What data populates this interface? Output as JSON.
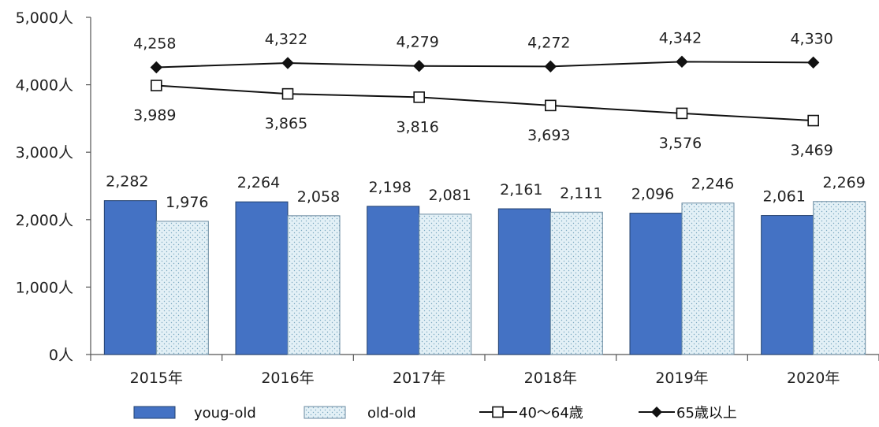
{
  "chart_data": {
    "type": "bar",
    "categories": [
      "2015年",
      "2016年",
      "2017年",
      "2018年",
      "2019年",
      "2020年"
    ],
    "y_ticks": [
      "0人",
      "1,000人",
      "2,000人",
      "3,000人",
      "4,000人",
      "5,000人"
    ],
    "ylim": [
      0,
      5000
    ],
    "grid": false,
    "legend_position": "bottom",
    "bar_series": [
      {
        "name": "youg-old",
        "values": [
          2282,
          2264,
          2198,
          2161,
          2096,
          2061
        ],
        "labels": [
          "2,282",
          "2,264",
          "2,198",
          "2,161",
          "2,096",
          "2,061"
        ],
        "color": "#4472c4"
      },
      {
        "name": "old-old",
        "values": [
          1976,
          2058,
          2081,
          2111,
          2246,
          2269
        ],
        "labels": [
          "1,976",
          "2,058",
          "2,081",
          "2,111",
          "2,246",
          "2,269"
        ],
        "color": "#dfeef5"
      }
    ],
    "line_series": [
      {
        "name": "40～64歳",
        "values": [
          3989,
          3865,
          3816,
          3693,
          3576,
          3469
        ],
        "labels": [
          "3,989",
          "3,865",
          "3,816",
          "3,693",
          "3,576",
          "3,469"
        ],
        "marker": "square-hollow"
      },
      {
        "name": "65歳以上",
        "values": [
          4258,
          4322,
          4279,
          4272,
          4342,
          4330
        ],
        "labels": [
          "4,258",
          "4,322",
          "4,279",
          "4,272",
          "4,342",
          "4,330"
        ],
        "marker": "diamond-filled"
      }
    ]
  }
}
